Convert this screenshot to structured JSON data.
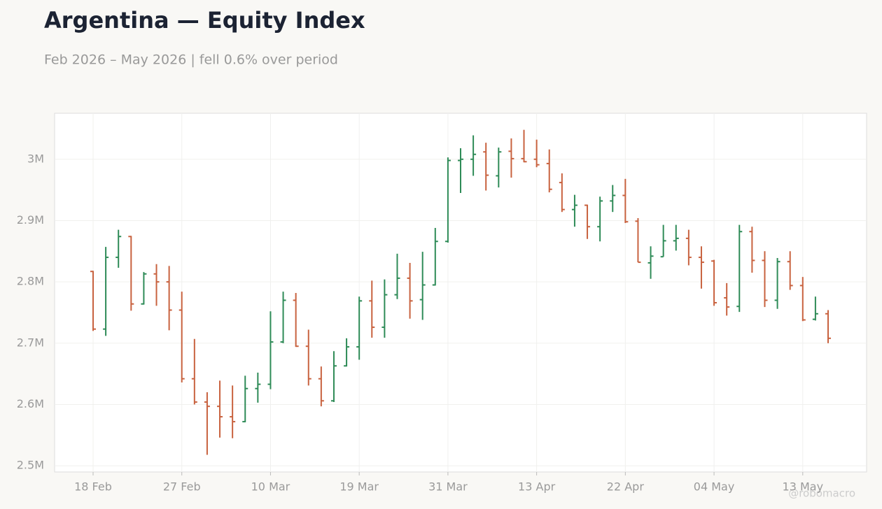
{
  "chart_data": {
    "type": "ohlc",
    "title": "Argentina — Equity Index",
    "subtitle": "Feb 2026 – May 2026 | fell 0.6% over period",
    "watermark": "@robomacro",
    "categories": [
      "18 Feb",
      null,
      null,
      null,
      null,
      null,
      null,
      "27 Feb",
      null,
      null,
      null,
      null,
      null,
      null,
      "10 Mar",
      null,
      null,
      null,
      null,
      null,
      null,
      "19 Mar",
      null,
      null,
      null,
      null,
      null,
      null,
      "31 Mar",
      null,
      null,
      null,
      null,
      null,
      null,
      "13 Apr",
      null,
      null,
      null,
      null,
      null,
      null,
      "22 Apr",
      null,
      null,
      null,
      null,
      null,
      null,
      "04 May",
      null,
      null,
      null,
      null,
      null,
      null,
      "13 May",
      null,
      null
    ],
    "up_color": "#2e8b57",
    "down_color": "#c8623f",
    "open": [
      2817000,
      2723000,
      2840000,
      2874000,
      2764000,
      2813000,
      2800000,
      2754000,
      2642000,
      2604000,
      2597000,
      2580000,
      2572000,
      2626000,
      2633000,
      2702000,
      2770000,
      2695000,
      2642000,
      2606000,
      2663000,
      2694000,
      2769000,
      2726000,
      2779000,
      2806000,
      2771000,
      2795000,
      2866000,
      2998000,
      3000000,
      3012000,
      2973000,
      3013000,
      3001000,
      3000000,
      2993000,
      2962000,
      2918000,
      2925000,
      2890000,
      2932000,
      2941000,
      2899000,
      2831000,
      2841000,
      2867000,
      2871000,
      2840000,
      2834000,
      2774000,
      2760000,
      2882000,
      2835000,
      2770000,
      2833000,
      2794000,
      2739000,
      2748000
    ],
    "high": [
      2818000,
      2857000,
      2885000,
      2875000,
      2816000,
      2829000,
      2826000,
      2784000,
      2707000,
      2620000,
      2639000,
      2631000,
      2647000,
      2652000,
      2752000,
      2784000,
      2782000,
      2722000,
      2662000,
      2687000,
      2708000,
      2776000,
      2802000,
      2804000,
      2846000,
      2831000,
      2849000,
      2888000,
      3003000,
      3018000,
      3039000,
      3027000,
      3019000,
      3034000,
      3048000,
      3032000,
      3016000,
      2977000,
      2942000,
      2926000,
      2939000,
      2958000,
      2968000,
      2904000,
      2858000,
      2893000,
      2893000,
      2885000,
      2858000,
      2836000,
      2798000,
      2893000,
      2890000,
      2850000,
      2839000,
      2850000,
      2808000,
      2776000,
      2754000
    ],
    "low": [
      2720000,
      2712000,
      2823000,
      2753000,
      2763000,
      2761000,
      2721000,
      2636000,
      2600000,
      2518000,
      2546000,
      2545000,
      2571000,
      2603000,
      2625000,
      2700000,
      2694000,
      2631000,
      2597000,
      2604000,
      2662000,
      2673000,
      2709000,
      2709000,
      2772000,
      2740000,
      2738000,
      2794000,
      2864000,
      2945000,
      2973000,
      2949000,
      2954000,
      2970000,
      2995000,
      2987000,
      2946000,
      2914000,
      2890000,
      2870000,
      2866000,
      2914000,
      2896000,
      2832000,
      2805000,
      2841000,
      2851000,
      2827000,
      2789000,
      2761000,
      2745000,
      2751000,
      2815000,
      2759000,
      2756000,
      2787000,
      2736000,
      2737000,
      2700000
    ],
    "close": [
      2723000,
      2840000,
      2874000,
      2764000,
      2813000,
      2800000,
      2754000,
      2642000,
      2604000,
      2597000,
      2580000,
      2572000,
      2626000,
      2633000,
      2702000,
      2770000,
      2695000,
      2642000,
      2606000,
      2663000,
      2694000,
      2769000,
      2726000,
      2779000,
      2806000,
      2769000,
      2795000,
      2866000,
      2998000,
      3000000,
      3008000,
      2974000,
      3012000,
      3001000,
      2996000,
      2991000,
      2951000,
      2918000,
      2925000,
      2890000,
      2932000,
      2941000,
      2898000,
      2832000,
      2842000,
      2867000,
      2871000,
      2840000,
      2832000,
      2766000,
      2759000,
      2882000,
      2835000,
      2770000,
      2833000,
      2794000,
      2738000,
      2748000,
      2708000
    ],
    "ylim": [
      2490000,
      3075000
    ],
    "yticks": [
      {
        "value": 2500000,
        "label": "2.5M"
      },
      {
        "value": 2600000,
        "label": "2.6M"
      },
      {
        "value": 2700000,
        "label": "2.7M"
      },
      {
        "value": 2800000,
        "label": "2.8M"
      },
      {
        "value": 2900000,
        "label": "2.9M"
      },
      {
        "value": 3000000,
        "label": "3M"
      }
    ],
    "grid": true
  }
}
